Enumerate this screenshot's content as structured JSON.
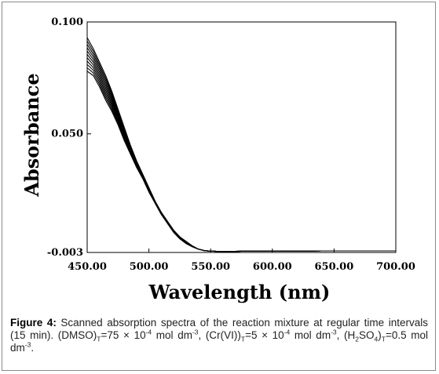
{
  "chart_data": {
    "type": "line",
    "xlabel": "Wavelength (nm)",
    "ylabel": "Absorbance",
    "xlim": [
      450,
      700
    ],
    "ylim": [
      -0.003,
      0.1
    ],
    "x_ticks": [
      "450.00",
      "500.00",
      "550.00",
      "600.00",
      "650.00",
      "700.00"
    ],
    "y_ticks": [
      "-0.003",
      "0.050",
      "0.100"
    ],
    "grid": false,
    "legend": "none",
    "line_color": "#000000",
    "x": [
      450,
      455,
      460,
      465,
      470,
      475,
      480,
      485,
      490,
      495,
      500,
      505,
      510,
      515,
      520,
      525,
      530,
      535,
      540,
      545,
      550,
      555,
      560,
      570,
      580,
      590,
      600,
      620,
      640,
      660,
      680,
      700
    ],
    "series": [
      {
        "values": [
          0.093,
          0.088,
          0.082,
          0.076,
          0.069,
          0.061,
          0.053,
          0.045,
          0.038,
          0.032,
          0.026,
          0.02,
          0.015,
          0.011,
          0.007,
          0.004,
          0.002,
          0.0,
          -0.0015,
          -0.0022,
          -0.0024,
          -0.0025,
          -0.0025,
          -0.0025,
          -0.0024,
          -0.0024,
          -0.0023,
          -0.0024,
          -0.0023,
          -0.0023,
          -0.0023,
          -0.0023
        ]
      },
      {
        "values": [
          0.0915,
          0.0868,
          0.0809,
          0.0749,
          0.0681,
          0.0603,
          0.0524,
          0.0446,
          0.0377,
          0.0318,
          0.0258,
          0.0199,
          0.0149,
          0.0109,
          0.0069,
          0.004,
          0.0019,
          0.0,
          -0.0015,
          -0.0022,
          -0.0024,
          -0.0025,
          -0.0025,
          -0.0025,
          -0.0024,
          -0.0024,
          -0.0023,
          -0.0024,
          -0.0023,
          -0.0023,
          -0.0023,
          -0.0023
        ]
      },
      {
        "values": [
          0.09,
          0.0856,
          0.0798,
          0.0738,
          0.0672,
          0.0596,
          0.0518,
          0.0442,
          0.0374,
          0.0316,
          0.0256,
          0.0198,
          0.0148,
          0.0108,
          0.0068,
          0.0039,
          0.0018,
          0.0,
          -0.0015,
          -0.0022,
          -0.0024,
          -0.0025,
          -0.0025,
          -0.0025,
          -0.0024,
          -0.0024,
          -0.0023,
          -0.0024,
          -0.0023,
          -0.0023,
          -0.0023,
          -0.0023
        ]
      },
      {
        "values": [
          0.0885,
          0.0844,
          0.0787,
          0.0727,
          0.0663,
          0.0589,
          0.0512,
          0.0438,
          0.0371,
          0.0314,
          0.0254,
          0.0197,
          0.0147,
          0.0107,
          0.0067,
          0.0038,
          0.0017,
          -0.0001,
          -0.0015,
          -0.0022,
          -0.0024,
          -0.0025,
          -0.0025,
          -0.0025,
          -0.0024,
          -0.0024,
          -0.0023,
          -0.0024,
          -0.0023,
          -0.0023,
          -0.0023,
          -0.0023
        ]
      },
      {
        "values": [
          0.087,
          0.0832,
          0.0776,
          0.0716,
          0.0654,
          0.0582,
          0.0506,
          0.0434,
          0.0368,
          0.0312,
          0.0252,
          0.0196,
          0.0146,
          0.0106,
          0.0066,
          0.0037,
          0.0016,
          -0.0001,
          -0.0015,
          -0.0022,
          -0.0024,
          -0.0025,
          -0.0025,
          -0.0025,
          -0.0024,
          -0.0024,
          -0.0023,
          -0.0024,
          -0.0023,
          -0.0023,
          -0.0023,
          -0.0023
        ]
      },
      {
        "values": [
          0.0855,
          0.082,
          0.0765,
          0.0705,
          0.0645,
          0.0575,
          0.05,
          0.043,
          0.0365,
          0.031,
          0.025,
          0.0195,
          0.0145,
          0.0105,
          0.0065,
          0.0036,
          0.0015,
          -0.0002,
          -0.0015,
          -0.0022,
          -0.0024,
          -0.0025,
          -0.0025,
          -0.0025,
          -0.0024,
          -0.0024,
          -0.0023,
          -0.0024,
          -0.0023,
          -0.0023,
          -0.0023,
          -0.0023
        ]
      },
      {
        "values": [
          0.084,
          0.0808,
          0.0754,
          0.0694,
          0.0636,
          0.0568,
          0.0494,
          0.0426,
          0.0362,
          0.0308,
          0.0248,
          0.0194,
          0.0144,
          0.0104,
          0.0064,
          0.0035,
          0.0014,
          -0.0002,
          -0.0015,
          -0.0022,
          -0.0024,
          -0.0025,
          -0.0025,
          -0.0025,
          -0.0024,
          -0.0024,
          -0.0023,
          -0.0024,
          -0.0023,
          -0.0023,
          -0.0023,
          -0.0023
        ]
      },
      {
        "values": [
          0.0825,
          0.0796,
          0.0743,
          0.0683,
          0.0627,
          0.0561,
          0.0488,
          0.0422,
          0.0359,
          0.0306,
          0.0246,
          0.0193,
          0.0143,
          0.0103,
          0.0063,
          0.0034,
          0.0013,
          -0.0003,
          -0.0015,
          -0.0022,
          -0.0024,
          -0.0025,
          -0.0025,
          -0.0025,
          -0.0024,
          -0.0024,
          -0.0023,
          -0.0024,
          -0.0023,
          -0.0023,
          -0.0023,
          -0.0023
        ]
      },
      {
        "values": [
          0.081,
          0.0784,
          0.0732,
          0.0672,
          0.0618,
          0.0554,
          0.0482,
          0.0418,
          0.0356,
          0.0304,
          0.0244,
          0.0192,
          0.0142,
          0.0102,
          0.0062,
          0.0033,
          0.0012,
          -0.0003,
          -0.0015,
          -0.0022,
          -0.0024,
          -0.0025,
          -0.0025,
          -0.0025,
          -0.0024,
          -0.0024,
          -0.0023,
          -0.0024,
          -0.0023,
          -0.0023,
          -0.0023,
          -0.0023
        ]
      },
      {
        "values": [
          0.0795,
          0.0772,
          0.0721,
          0.0661,
          0.0609,
          0.0547,
          0.0476,
          0.0414,
          0.0353,
          0.0302,
          0.0242,
          0.0191,
          0.0141,
          0.0101,
          0.0061,
          0.0032,
          0.0011,
          -0.0004,
          -0.0015,
          -0.0022,
          -0.0024,
          -0.0025,
          -0.0025,
          -0.0025,
          -0.0024,
          -0.0024,
          -0.0023,
          -0.0024,
          -0.0023,
          -0.0023,
          -0.0023,
          -0.0023
        ]
      },
      {
        "values": [
          0.078,
          0.076,
          0.071,
          0.065,
          0.06,
          0.054,
          0.047,
          0.041,
          0.035,
          0.03,
          0.024,
          0.019,
          0.014,
          0.01,
          0.006,
          0.0031,
          0.001,
          -0.0004,
          -0.0015,
          -0.0022,
          -0.0024,
          -0.0025,
          -0.0025,
          -0.0025,
          -0.0024,
          -0.0024,
          -0.0023,
          -0.0024,
          -0.0023,
          -0.0023,
          -0.0023,
          -0.0023
        ]
      }
    ]
  },
  "caption": {
    "label": "Figure 4:",
    "text_1": " Scanned absorption spectra of the reaction mixture at regular time intervals (15 min). (DMSO)",
    "sub_1": "T",
    "text_2": "=75 × 10",
    "sup_1": "-4",
    "text_3": " mol dm",
    "sup_2": "-3",
    "text_4": ", (Cr(VI))",
    "sub_2": "T",
    "text_5": "=5 × 10",
    "sup_3": "-4",
    "text_6": " mol dm",
    "sup_4": "-3",
    "text_7": ", (H",
    "sub_3": "2",
    "text_8": "SO",
    "sub_4": "4",
    "text_9": ")",
    "sub_5": "T",
    "text_10": "=0.5 mol dm",
    "sup_5": "-3",
    "text_11": "."
  }
}
